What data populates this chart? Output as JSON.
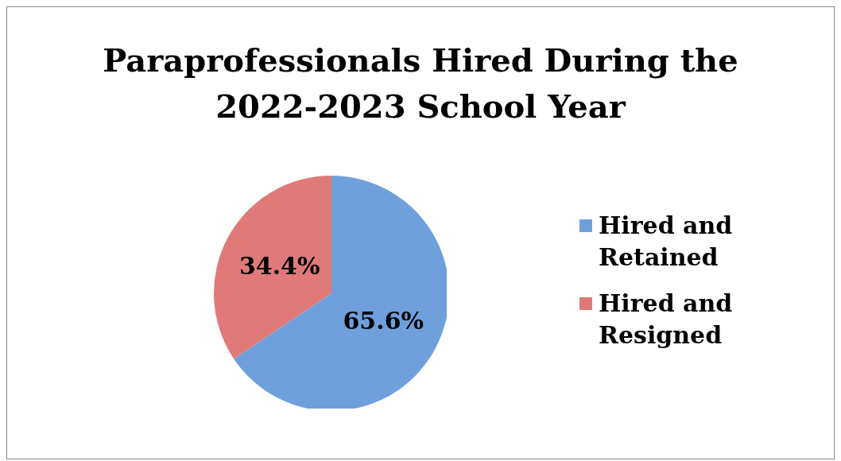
{
  "chart_data": {
    "type": "pie",
    "title": "Paraprofessionals Hired During the 2022-2023 School Year",
    "categories": [
      "Hired and Retained",
      "Hired and Resigned"
    ],
    "values": [
      65.6,
      34.4
    ],
    "colors": [
      "#6fa0dc",
      "#e07a78"
    ],
    "value_labels": [
      "65.6%",
      "34.4%"
    ],
    "legend": "right"
  }
}
